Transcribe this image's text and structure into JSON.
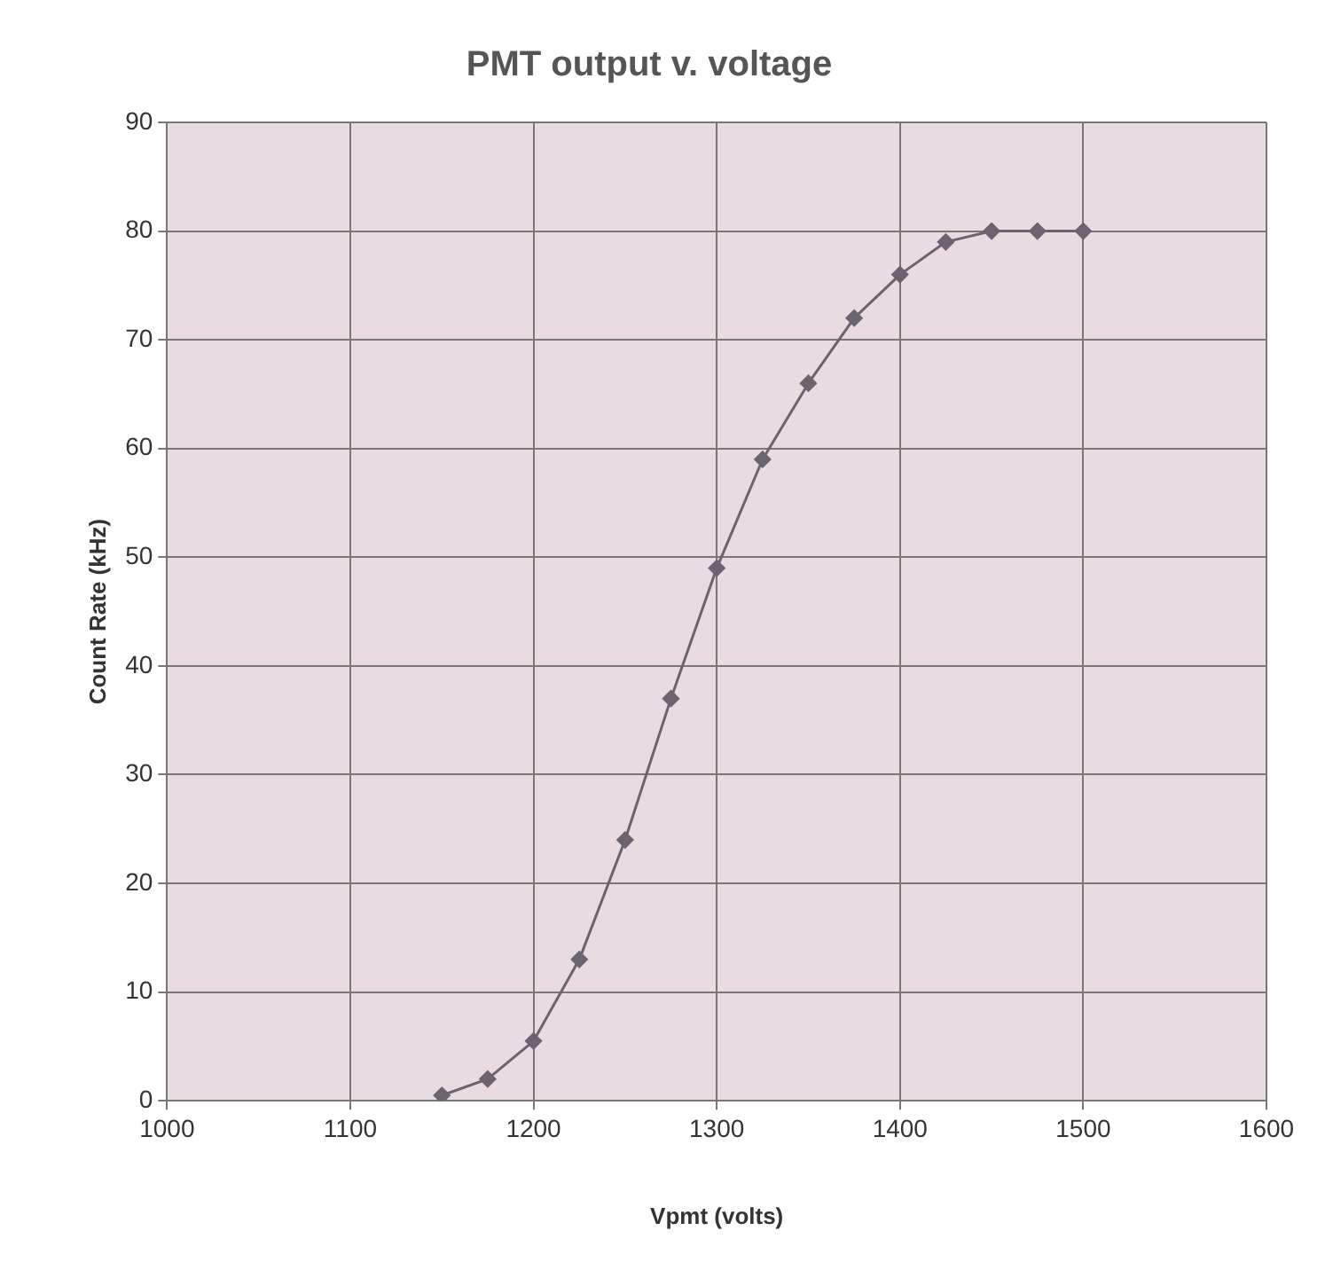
{
  "chart_data": {
    "type": "line",
    "title": "PMT output v. voltage",
    "xlabel": "Vpmt (volts)",
    "ylabel": "Count Rate (kHz)",
    "x": [
      1150,
      1175,
      1200,
      1225,
      1250,
      1275,
      1300,
      1325,
      1350,
      1375,
      1400,
      1425,
      1450,
      1475,
      1500
    ],
    "series": [
      {
        "color": "#6b6470",
        "values": [
          0.5,
          2,
          5.5,
          13,
          24,
          37,
          49,
          59,
          66,
          72,
          76,
          79,
          80,
          80,
          80
        ]
      }
    ],
    "xlim": [
      1000,
      1600
    ],
    "xticks": [
      1000,
      1100,
      1200,
      1300,
      1400,
      1500,
      1600
    ],
    "ylim": [
      0,
      90
    ],
    "yticks": [
      0,
      10,
      20,
      30,
      40,
      50,
      60,
      70,
      80,
      90
    ],
    "grid": true,
    "marker": "diamond",
    "line_style": "solid"
  }
}
